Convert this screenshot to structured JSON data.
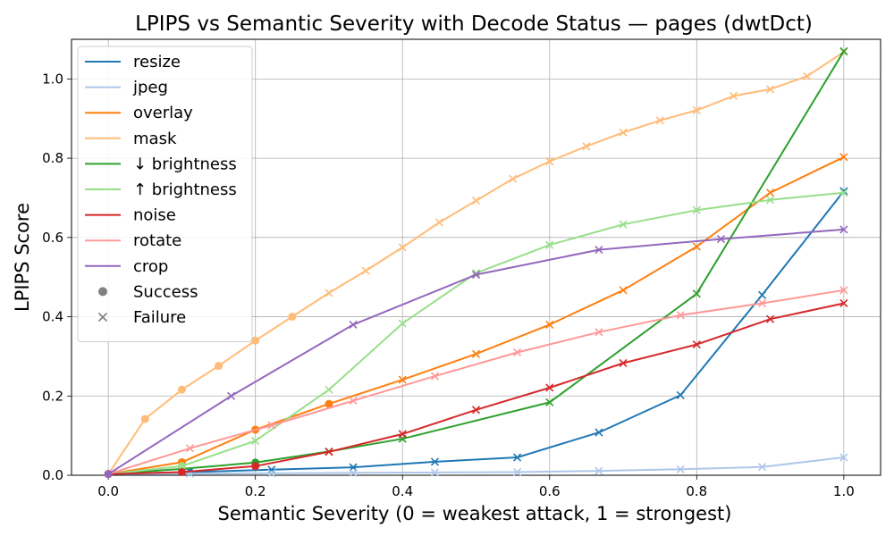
{
  "chart_data": {
    "type": "line",
    "title": "LPIPS vs Semantic Severity with Decode Status — pages (dwtDct)",
    "xlabel": "Semantic Severity (0 = weakest attack, 1 = strongest)",
    "ylabel": "LPIPS Score",
    "xlim": [
      -0.05,
      1.05
    ],
    "ylim": [
      0,
      1.1
    ],
    "xticks": [
      "0.0",
      "0.2",
      "0.4",
      "0.6",
      "0.8",
      "1.0"
    ],
    "yticks": [
      "0.0",
      "0.2",
      "0.4",
      "0.6",
      "0.8",
      "1.0"
    ],
    "grid": true,
    "legend_position": "top-left",
    "marker_legend": [
      {
        "label": "Success",
        "marker": "circle"
      },
      {
        "label": "Failure",
        "marker": "x"
      }
    ],
    "series": [
      {
        "name": "resize",
        "color": "#1f77b4",
        "points": [
          [
            0.0,
            0.003,
            "s"
          ],
          [
            0.111,
            0.008,
            "s"
          ],
          [
            0.222,
            0.014,
            "f"
          ],
          [
            0.333,
            0.02,
            "f"
          ],
          [
            0.444,
            0.034,
            "f"
          ],
          [
            0.556,
            0.045,
            "f"
          ],
          [
            0.667,
            0.108,
            "f"
          ],
          [
            0.778,
            0.202,
            "f"
          ],
          [
            0.889,
            0.455,
            "f"
          ],
          [
            1.0,
            0.717,
            "f"
          ]
        ]
      },
      {
        "name": "jpeg",
        "color": "#aec7e8",
        "points": [
          [
            0.0,
            0.003,
            "s"
          ],
          [
            0.111,
            0.004,
            "f"
          ],
          [
            0.222,
            0.005,
            "f"
          ],
          [
            0.333,
            0.006,
            "f"
          ],
          [
            0.444,
            0.007,
            "f"
          ],
          [
            0.556,
            0.008,
            "f"
          ],
          [
            0.667,
            0.011,
            "f"
          ],
          [
            0.778,
            0.015,
            "f"
          ],
          [
            0.889,
            0.021,
            "f"
          ],
          [
            1.0,
            0.045,
            "f"
          ]
        ]
      },
      {
        "name": "overlay",
        "color": "#ff7f0e",
        "points": [
          [
            0.0,
            0.003,
            "s"
          ],
          [
            0.1,
            0.033,
            "s"
          ],
          [
            0.2,
            0.115,
            "s"
          ],
          [
            0.3,
            0.18,
            "s"
          ],
          [
            0.4,
            0.241,
            "f"
          ],
          [
            0.5,
            0.306,
            "f"
          ],
          [
            0.6,
            0.38,
            "f"
          ],
          [
            0.7,
            0.467,
            "f"
          ],
          [
            0.8,
            0.577,
            "f"
          ],
          [
            0.9,
            0.713,
            "f"
          ],
          [
            1.0,
            0.803,
            "f"
          ]
        ]
      },
      {
        "name": "mask",
        "color": "#ffbb78",
        "points": [
          [
            0.0,
            0.003,
            "s"
          ],
          [
            0.05,
            0.142,
            "s"
          ],
          [
            0.1,
            0.216,
            "s"
          ],
          [
            0.15,
            0.276,
            "s"
          ],
          [
            0.2,
            0.34,
            "s"
          ],
          [
            0.25,
            0.4,
            "s"
          ],
          [
            0.3,
            0.46,
            "f"
          ],
          [
            0.35,
            0.516,
            "f"
          ],
          [
            0.4,
            0.575,
            "f"
          ],
          [
            0.45,
            0.638,
            "f"
          ],
          [
            0.5,
            0.693,
            "f"
          ],
          [
            0.55,
            0.748,
            "f"
          ],
          [
            0.6,
            0.792,
            "f"
          ],
          [
            0.65,
            0.83,
            "f"
          ],
          [
            0.7,
            0.865,
            "f"
          ],
          [
            0.75,
            0.895,
            "f"
          ],
          [
            0.8,
            0.921,
            "f"
          ],
          [
            0.85,
            0.957,
            "f"
          ],
          [
            0.9,
            0.974,
            "f"
          ],
          [
            0.95,
            1.007,
            "f"
          ],
          [
            1.0,
            1.068,
            "f"
          ]
        ]
      },
      {
        "name": "↓ brightness",
        "color": "#2ca02c",
        "points": [
          [
            0.0,
            0.003,
            "s"
          ],
          [
            0.1,
            0.016,
            "s"
          ],
          [
            0.2,
            0.032,
            "s"
          ],
          [
            0.3,
            0.06,
            "f"
          ],
          [
            0.4,
            0.092,
            "f"
          ],
          [
            0.6,
            0.184,
            "f"
          ],
          [
            0.8,
            0.458,
            "f"
          ],
          [
            1.0,
            1.07,
            "f"
          ]
        ]
      },
      {
        "name": "↑ brightness",
        "color": "#98df8a",
        "points": [
          [
            0.0,
            0.003,
            "s"
          ],
          [
            0.1,
            0.023,
            "s"
          ],
          [
            0.2,
            0.087,
            "f"
          ],
          [
            0.3,
            0.216,
            "f"
          ],
          [
            0.4,
            0.383,
            "f"
          ],
          [
            0.5,
            0.51,
            "f"
          ],
          [
            0.6,
            0.581,
            "f"
          ],
          [
            0.7,
            0.633,
            "f"
          ],
          [
            0.8,
            0.669,
            "f"
          ],
          [
            0.9,
            0.695,
            "f"
          ],
          [
            1.0,
            0.713,
            "f"
          ]
        ]
      },
      {
        "name": "noise",
        "color": "#d62728",
        "points": [
          [
            0.0,
            0.003,
            "s"
          ],
          [
            0.1,
            0.008,
            "s"
          ],
          [
            0.2,
            0.023,
            "s"
          ],
          [
            0.3,
            0.059,
            "f"
          ],
          [
            0.4,
            0.104,
            "f"
          ],
          [
            0.5,
            0.165,
            "f"
          ],
          [
            0.6,
            0.221,
            "f"
          ],
          [
            0.7,
            0.283,
            "f"
          ],
          [
            0.8,
            0.33,
            "f"
          ],
          [
            0.9,
            0.394,
            "f"
          ],
          [
            1.0,
            0.434,
            "f"
          ]
        ]
      },
      {
        "name": "rotate",
        "color": "#ff9896",
        "points": [
          [
            0.0,
            0.003,
            "s"
          ],
          [
            0.111,
            0.068,
            "f"
          ],
          [
            0.222,
            0.126,
            "f"
          ],
          [
            0.333,
            0.188,
            "f"
          ],
          [
            0.444,
            0.25,
            "f"
          ],
          [
            0.556,
            0.31,
            "f"
          ],
          [
            0.667,
            0.361,
            "f"
          ],
          [
            0.778,
            0.404,
            "f"
          ],
          [
            0.889,
            0.434,
            "f"
          ],
          [
            1.0,
            0.467,
            "f"
          ]
        ]
      },
      {
        "name": "crop",
        "color": "#9467bd",
        "points": [
          [
            0.0,
            0.003,
            "s"
          ],
          [
            0.167,
            0.2,
            "f"
          ],
          [
            0.333,
            0.38,
            "f"
          ],
          [
            0.5,
            0.506,
            "f"
          ],
          [
            0.667,
            0.569,
            "f"
          ],
          [
            0.833,
            0.596,
            "f"
          ],
          [
            1.0,
            0.62,
            "f"
          ]
        ]
      }
    ]
  }
}
